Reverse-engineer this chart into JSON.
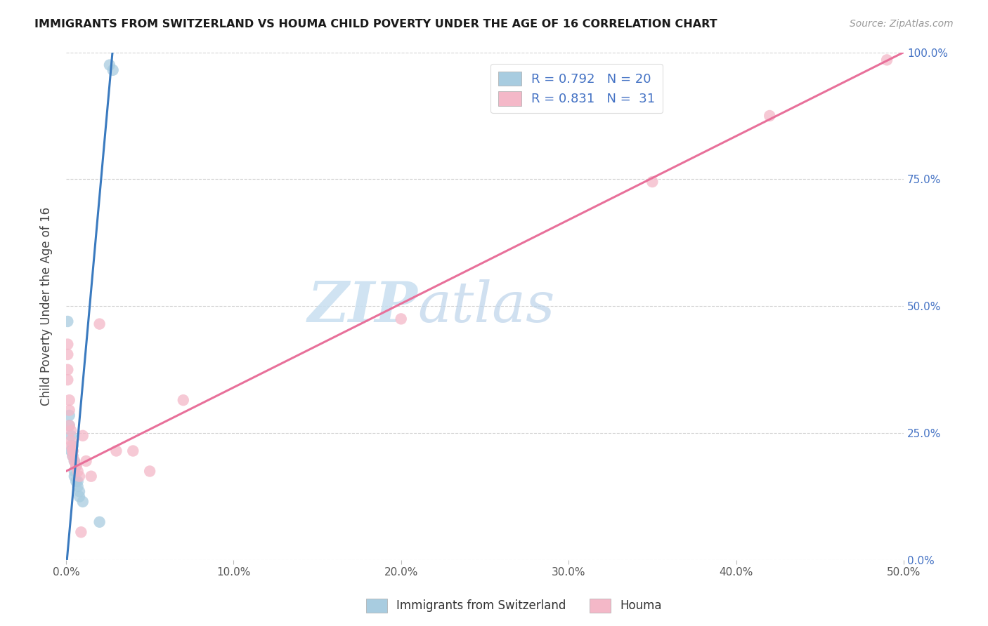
{
  "title": "IMMIGRANTS FROM SWITZERLAND VS HOUMA CHILD POVERTY UNDER THE AGE OF 16 CORRELATION CHART",
  "source": "Source: ZipAtlas.com",
  "ylabel": "Child Poverty Under the Age of 16",
  "xlim": [
    0.0,
    0.5
  ],
  "ylim": [
    0.0,
    1.0
  ],
  "xtick_labels": [
    "0.0%",
    "",
    "",
    "",
    "",
    "10.0%",
    "",
    "",
    "",
    "",
    "20.0%",
    "",
    "",
    "",
    "",
    "30.0%",
    "",
    "",
    "",
    "",
    "40.0%",
    "",
    "",
    "",
    "",
    "50.0%"
  ],
  "xtick_values": [
    0.0,
    0.02,
    0.04,
    0.06,
    0.08,
    0.1,
    0.12,
    0.14,
    0.16,
    0.18,
    0.2,
    0.22,
    0.24,
    0.26,
    0.28,
    0.3,
    0.32,
    0.34,
    0.36,
    0.38,
    0.4,
    0.42,
    0.44,
    0.46,
    0.48,
    0.5
  ],
  "ytick_labels": [
    "0.0%",
    "25.0%",
    "50.0%",
    "75.0%",
    "100.0%"
  ],
  "ytick_values": [
    0.0,
    0.25,
    0.5,
    0.75,
    1.0
  ],
  "watermark_zip": "ZIP",
  "watermark_atlas": "atlas",
  "blue_color": "#a8cce0",
  "pink_color": "#f4b8c8",
  "blue_line_color": "#3a7abf",
  "pink_line_color": "#e8709a",
  "blue_scatter": [
    [
      0.001,
      0.47
    ],
    [
      0.002,
      0.285
    ],
    [
      0.002,
      0.265
    ],
    [
      0.003,
      0.245
    ],
    [
      0.003,
      0.215
    ],
    [
      0.004,
      0.225
    ],
    [
      0.004,
      0.205
    ],
    [
      0.005,
      0.195
    ],
    [
      0.005,
      0.175
    ],
    [
      0.005,
      0.165
    ],
    [
      0.006,
      0.185
    ],
    [
      0.006,
      0.155
    ],
    [
      0.007,
      0.145
    ],
    [
      0.007,
      0.155
    ],
    [
      0.008,
      0.135
    ],
    [
      0.008,
      0.125
    ],
    [
      0.01,
      0.115
    ],
    [
      0.02,
      0.075
    ],
    [
      0.026,
      0.975
    ],
    [
      0.028,
      0.965
    ]
  ],
  "pink_scatter": [
    [
      0.001,
      0.425
    ],
    [
      0.001,
      0.405
    ],
    [
      0.001,
      0.375
    ],
    [
      0.001,
      0.355
    ],
    [
      0.002,
      0.315
    ],
    [
      0.002,
      0.295
    ],
    [
      0.002,
      0.265
    ],
    [
      0.003,
      0.255
    ],
    [
      0.003,
      0.235
    ],
    [
      0.003,
      0.225
    ],
    [
      0.004,
      0.215
    ],
    [
      0.004,
      0.205
    ],
    [
      0.004,
      0.215
    ],
    [
      0.005,
      0.195
    ],
    [
      0.006,
      0.185
    ],
    [
      0.006,
      0.185
    ],
    [
      0.007,
      0.175
    ],
    [
      0.008,
      0.165
    ],
    [
      0.009,
      0.055
    ],
    [
      0.01,
      0.245
    ],
    [
      0.012,
      0.195
    ],
    [
      0.015,
      0.165
    ],
    [
      0.02,
      0.465
    ],
    [
      0.03,
      0.215
    ],
    [
      0.04,
      0.215
    ],
    [
      0.05,
      0.175
    ],
    [
      0.07,
      0.315
    ],
    [
      0.2,
      0.475
    ],
    [
      0.35,
      0.745
    ],
    [
      0.42,
      0.875
    ],
    [
      0.49,
      0.985
    ]
  ],
  "blue_trendline_x": [
    0.0,
    0.028
  ],
  "blue_trendline_y": [
    -0.02,
    1.01
  ],
  "pink_trendline_x": [
    0.0,
    0.5
  ],
  "pink_trendline_y": [
    0.175,
    1.0
  ],
  "legend_items": [
    {
      "r": "0.792",
      "n": "20"
    },
    {
      "r": "0.831",
      "n": "31"
    }
  ],
  "bottom_legend": [
    "Immigrants from Switzerland",
    "Houma"
  ]
}
